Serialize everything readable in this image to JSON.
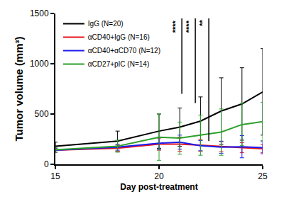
{
  "chart_data": {
    "type": "line",
    "x_label": "Day post-treatment",
    "y_label": "Tumor volume (mm³)",
    "x": [
      15,
      18,
      20,
      21,
      22,
      23,
      24,
      25
    ],
    "series": [
      {
        "name": "IgG (N=20)",
        "color": "#000000",
        "values": [
          180,
          230,
          330,
          370,
          430,
          530,
          600,
          720
        ],
        "errors": [
          40,
          100,
          170,
          190,
          240,
          330,
          360,
          430
        ]
      },
      {
        "name": "αCD40+IgG (N=16)",
        "color": "#e8141c",
        "values": [
          140,
          160,
          200,
          200,
          190,
          175,
          165,
          155
        ],
        "errors": [
          20,
          30,
          60,
          70,
          60,
          50,
          50,
          40
        ]
      },
      {
        "name": "αCD40+αCD70 (N=12)",
        "color": "#1c1cf0",
        "values": [
          140,
          170,
          210,
          220,
          185,
          170,
          175,
          165
        ],
        "errors": [
          20,
          30,
          60,
          70,
          50,
          60,
          110,
          60
        ]
      },
      {
        "name": "αCD27+pIC (N=14)",
        "color": "#2ca02c",
        "values": [
          145,
          180,
          270,
          260,
          290,
          320,
          395,
          425
        ],
        "errors": [
          25,
          60,
          230,
          160,
          200,
          230,
          210,
          190
        ]
      }
    ],
    "xlim": [
      15,
      25
    ],
    "xticks": [
      15,
      20,
      25
    ],
    "ylim": [
      0,
      1500
    ],
    "yticks": [
      0,
      500,
      1000,
      1500
    ],
    "grid": false,
    "legend": "top left",
    "significance": [
      {
        "label": "****",
        "x": 21.1,
        "y_start": 1450,
        "y_end": 700
      },
      {
        "label": "****",
        "x": 21.75,
        "y_start": 1450,
        "y_end": 610
      },
      {
        "label": "**",
        "x": 22.4,
        "y_start": 1450,
        "y_end": 230
      }
    ]
  }
}
